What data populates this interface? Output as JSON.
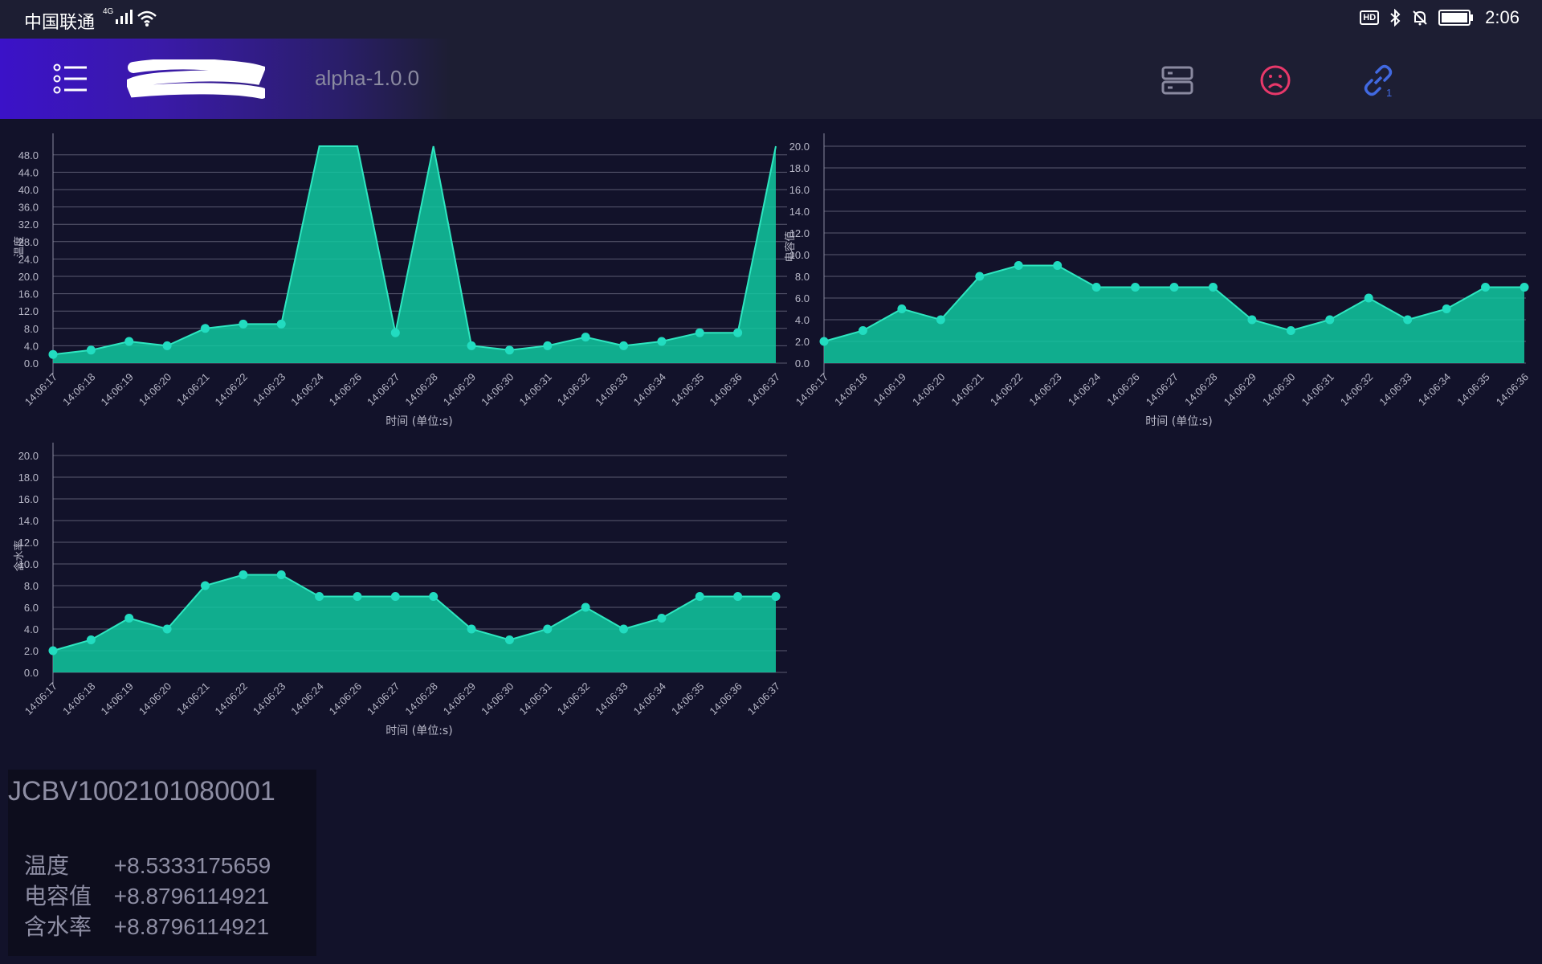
{
  "status_bar": {
    "carrier": "中国联通",
    "network": "4G",
    "time": "2:06",
    "hd": "HD",
    "battery_level": 1.0
  },
  "header": {
    "version": "alpha-1.0.0",
    "icons": [
      "menu-icon",
      "server-icon",
      "sad-face-icon",
      "link-icon"
    ],
    "link_count": "1",
    "colors": {
      "server": "#8a8aa0",
      "sad": "#e8386a",
      "link": "#4169e1"
    }
  },
  "charts": {
    "x_title": "时间 (单位:s)"
  },
  "chart_data": [
    {
      "type": "area",
      "ylabel": "温度",
      "xlabel": "时间 (单位:s)",
      "ylim": [
        0,
        50
      ],
      "yticks": [
        "0.0",
        "4.0",
        "8.0",
        "12.0",
        "16.0",
        "20.0",
        "24.0",
        "28.0",
        "32.0",
        "36.0",
        "40.0",
        "44.0",
        "48.0"
      ],
      "x": [
        "14:06:17",
        "14:06:18",
        "14:06:19",
        "14:06:20",
        "14:06:21",
        "14:06:22",
        "14:06:23",
        "14:06:24",
        "14:06:26",
        "14:06:27",
        "14:06:28",
        "14:06:29",
        "14:06:30",
        "14:06:31",
        "14:06:32",
        "14:06:33",
        "14:06:34",
        "14:06:35",
        "14:06:36",
        "14:06:37"
      ],
      "values": [
        2,
        3,
        5,
        4,
        8,
        9,
        9,
        50,
        50,
        7,
        50,
        4,
        3,
        4,
        6,
        4,
        5,
        7,
        7,
        50
      ],
      "color": "#10c9a0",
      "grid": true
    },
    {
      "type": "area",
      "ylabel": "电容值",
      "xlabel": "时间 (单位:s)",
      "ylim": [
        0,
        20
      ],
      "yticks": [
        "0.0",
        "2.0",
        "4.0",
        "6.0",
        "8.0",
        "10.0",
        "12.0",
        "14.0",
        "16.0",
        "18.0",
        "20.0"
      ],
      "x": [
        "14:06:17",
        "14:06:18",
        "14:06:19",
        "14:06:20",
        "14:06:21",
        "14:06:22",
        "14:06:23",
        "14:06:24",
        "14:06:26",
        "14:06:27",
        "14:06:28",
        "14:06:29",
        "14:06:30",
        "14:06:31",
        "14:06:32",
        "14:06:33",
        "14:06:34",
        "14:06:35",
        "14:06:36"
      ],
      "values": [
        2,
        3,
        5,
        4,
        8,
        9,
        9,
        7,
        7,
        7,
        7,
        4,
        3,
        4,
        6,
        4,
        5,
        7,
        7
      ],
      "color": "#10c9a0",
      "grid": true
    },
    {
      "type": "area",
      "ylabel": "含水率",
      "xlabel": "时间 (单位:s)",
      "ylim": [
        0,
        20
      ],
      "yticks": [
        "0.0",
        "2.0",
        "4.0",
        "6.0",
        "8.0",
        "10.0",
        "12.0",
        "14.0",
        "16.0",
        "18.0",
        "20.0"
      ],
      "x": [
        "14:06:17",
        "14:06:18",
        "14:06:19",
        "14:06:20",
        "14:06:21",
        "14:06:22",
        "14:06:23",
        "14:06:24",
        "14:06:26",
        "14:06:27",
        "14:06:28",
        "14:06:29",
        "14:06:30",
        "14:06:31",
        "14:06:32",
        "14:06:33",
        "14:06:34",
        "14:06:35",
        "14:06:36",
        "14:06:37"
      ],
      "values": [
        2,
        3,
        5,
        4,
        8,
        9,
        9,
        7,
        7,
        7,
        7,
        4,
        3,
        4,
        6,
        4,
        5,
        7,
        7,
        7
      ],
      "color": "#10c9a0",
      "grid": true
    }
  ],
  "device": {
    "id": "JCBV1002101080001",
    "readings": [
      {
        "label": "温度",
        "value": "+8.5333175659"
      },
      {
        "label": "电容值",
        "value": "+8.8796114921"
      },
      {
        "label": "含水率",
        "value": "+8.8796114921"
      }
    ]
  }
}
